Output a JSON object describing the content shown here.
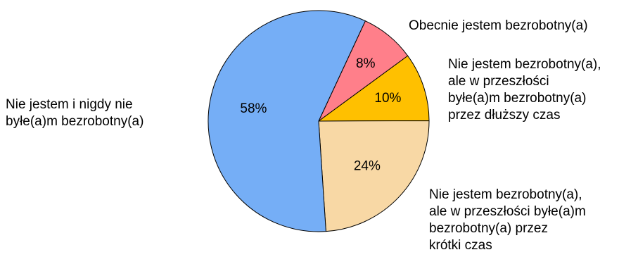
{
  "chart_data": {
    "type": "pie",
    "slices": [
      {
        "label": "Obecnie jestem bezrobotny(a)",
        "value": 8,
        "value_label": "8%",
        "color": "#FF7F8A"
      },
      {
        "label": "Nie jestem bezrobotny(a),\nale w przeszłości\nbyłe(a)m bezrobotny(a)\nprzez dłuższy czas",
        "value": 10,
        "value_label": "10%",
        "color": "#FFC000"
      },
      {
        "label": "Nie jestem bezrobotny(a),\nale w przeszłości byłe(a)m\nbezrobotny(a) przez\nkrótki czas",
        "value": 24,
        "value_label": "24%",
        "color": "#F8D8A5"
      },
      {
        "label": "Nie jestem i nigdy nie\nbyłe(a)m bezrobotny(a)",
        "value": 58,
        "value_label": "58%",
        "color": "#75AEF6"
      }
    ],
    "start_angle_deg": 25,
    "direction": "clockwise",
    "legend": "none",
    "labels": "outside"
  }
}
